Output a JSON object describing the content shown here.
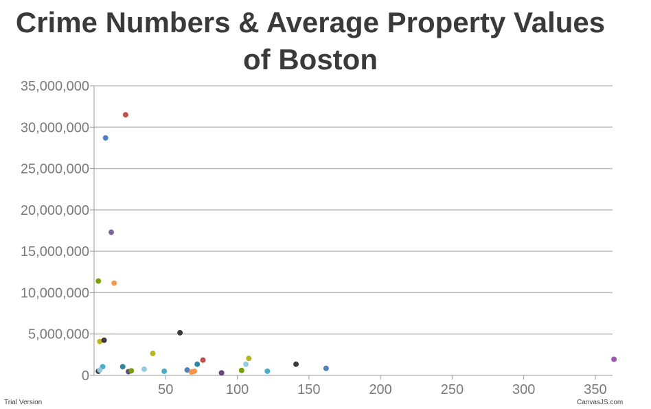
{
  "title_line1": "Crime Numbers & Average Property Values",
  "title_line2": "of Boston",
  "footer_left": "Trial Version",
  "footer_right": "CanvasJS.com",
  "chart_data": {
    "type": "scatter",
    "title": "Crime Numbers & Average Property Values of Boston",
    "xlabel": "",
    "ylabel": "",
    "xlim": [
      0,
      362
    ],
    "ylim": [
      0,
      35000000
    ],
    "x_ticks": [
      50,
      100,
      150,
      200,
      250,
      300,
      350
    ],
    "x_tick_labels": [
      "50",
      "100",
      "150",
      "200",
      "250",
      "300",
      "350"
    ],
    "y_ticks": [
      0,
      5000000,
      10000000,
      15000000,
      20000000,
      25000000,
      30000000,
      35000000
    ],
    "y_tick_labels": [
      "0",
      "5,000,000",
      "10,000,000",
      "15,000,000",
      "20,000,000",
      "25,000,000",
      "30,000,000",
      "35,000,000"
    ],
    "grid": "horizontal",
    "legend": "none",
    "points": [
      {
        "x": 22,
        "y": 31500000,
        "color": "#c0504d"
      },
      {
        "x": 8,
        "y": 28700000,
        "color": "#4f81bd"
      },
      {
        "x": 12,
        "y": 17300000,
        "color": "#8064a2"
      },
      {
        "x": 3,
        "y": 11400000,
        "color": "#77a00a"
      },
      {
        "x": 14,
        "y": 11150000,
        "color": "#f79646"
      },
      {
        "x": 4,
        "y": 4100000,
        "color": "#b8b81e"
      },
      {
        "x": 7,
        "y": 4250000,
        "color": "#3c3c3c"
      },
      {
        "x": 60,
        "y": 5150000,
        "color": "#3c3c3c"
      },
      {
        "x": 41,
        "y": 2650000,
        "color": "#b8b81e"
      },
      {
        "x": 76,
        "y": 1850000,
        "color": "#c0504d"
      },
      {
        "x": 108,
        "y": 2050000,
        "color": "#b8b81e"
      },
      {
        "x": 141,
        "y": 1350000,
        "color": "#3c3c3c"
      },
      {
        "x": 162,
        "y": 850000,
        "color": "#4f81bd"
      },
      {
        "x": 363,
        "y": 1950000,
        "color": "#9b59b6"
      },
      {
        "x": 6,
        "y": 1050000,
        "color": "#4bacc6"
      },
      {
        "x": 20,
        "y": 1050000,
        "color": "#31859c"
      },
      {
        "x": 72,
        "y": 1350000,
        "color": "#31859c"
      },
      {
        "x": 106,
        "y": 1350000,
        "color": "#93cddd"
      },
      {
        "x": 35,
        "y": 750000,
        "color": "#93cddd"
      },
      {
        "x": 3,
        "y": 500000,
        "color": "#3c3c3c"
      },
      {
        "x": 4,
        "y": 650000,
        "color": "#93cddd"
      },
      {
        "x": 24,
        "y": 450000,
        "color": "#604a7b"
      },
      {
        "x": 26,
        "y": 550000,
        "color": "#77a00a"
      },
      {
        "x": 49,
        "y": 500000,
        "color": "#4bacc6"
      },
      {
        "x": 65,
        "y": 650000,
        "color": "#4f81bd"
      },
      {
        "x": 68,
        "y": 400000,
        "color": "#f79646"
      },
      {
        "x": 70,
        "y": 500000,
        "color": "#f79646"
      },
      {
        "x": 89,
        "y": 300000,
        "color": "#604a7b"
      },
      {
        "x": 103,
        "y": 600000,
        "color": "#77a00a"
      },
      {
        "x": 121,
        "y": 500000,
        "color": "#4bacc6"
      }
    ]
  }
}
